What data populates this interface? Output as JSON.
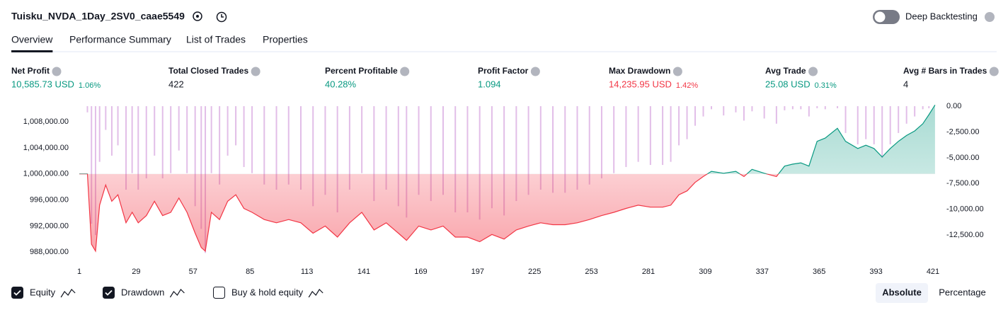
{
  "header": {
    "title": "Tuisku_NVDA_1Day_2SV0_caae5549",
    "toggle": {
      "label": "Deep Backtesting",
      "on": false
    }
  },
  "tabs": [
    {
      "label": "Overview",
      "active": true
    },
    {
      "label": "Performance Summary",
      "active": false
    },
    {
      "label": "List of Trades",
      "active": false
    },
    {
      "label": "Properties",
      "active": false
    }
  ],
  "metrics": [
    {
      "label": "Net Profit",
      "value": "10,585.73 USD",
      "percent": "1.06%",
      "tone": "pos"
    },
    {
      "label": "Total Closed Trades",
      "value": "422",
      "tone": "neutral"
    },
    {
      "label": "Percent Profitable",
      "value": "40.28%",
      "tone": "pos"
    },
    {
      "label": "Profit Factor",
      "value": "1.094",
      "tone": "pos"
    },
    {
      "label": "Max Drawdown",
      "value": "14,235.95 USD",
      "percent": "1.42%",
      "tone": "neg"
    },
    {
      "label": "Avg Trade",
      "value": "25.08 USD",
      "percent": "0.31%",
      "tone": "pos"
    },
    {
      "label": "Avg # Bars in Trades",
      "value": "4",
      "tone": "neutral"
    }
  ],
  "chart_data": {
    "type": "line",
    "x": [
      1,
      5,
      7,
      9,
      11,
      14,
      17,
      20,
      24,
      27,
      30,
      34,
      38,
      42,
      46,
      50,
      54,
      58,
      61,
      63,
      66,
      70,
      74,
      78,
      82,
      86,
      92,
      98,
      104,
      110,
      116,
      122,
      128,
      134,
      140,
      146,
      152,
      158,
      162,
      168,
      174,
      180,
      186,
      192,
      198,
      204,
      210,
      216,
      222,
      228,
      234,
      240,
      246,
      252,
      258,
      264,
      270,
      276,
      282,
      288,
      292,
      296,
      300,
      304,
      308,
      312,
      318,
      324,
      328,
      332,
      338,
      344,
      348,
      352,
      356,
      360,
      364,
      368,
      374,
      378,
      384,
      388,
      392,
      396,
      400,
      404,
      408,
      412,
      416,
      419,
      422
    ],
    "series": [
      {
        "name": "Equity",
        "color": "#f23645",
        "color_up": "#089981",
        "values": [
          1000000,
          1000000,
          989200,
          988150,
          995200,
          998300,
          995800,
          996800,
          992500,
          994100,
          992500,
          993600,
          995800,
          993600,
          994100,
          996300,
          994100,
          990900,
          988700,
          988150,
          994100,
          993000,
          995800,
          996800,
          994700,
          994100,
          993000,
          992500,
          993000,
          992500,
          990900,
          992000,
          990300,
          992500,
          994100,
          991400,
          992500,
          990900,
          989800,
          992000,
          991400,
          992000,
          990300,
          990300,
          989600,
          990700,
          990000,
          991400,
          992000,
          992500,
          992200,
          992200,
          992500,
          993000,
          993600,
          994100,
          994700,
          995200,
          994900,
          994900,
          995200,
          996800,
          997400,
          998700,
          999600,
          1000400,
          1000100,
          1000400,
          999600,
          1000700,
          1000100,
          999600,
          1001200,
          1001500,
          1001700,
          1001200,
          1005000,
          1005500,
          1007000,
          1005000,
          1003900,
          1004400,
          1003900,
          1002600,
          1003900,
          1005000,
          1005900,
          1006600,
          1007700,
          1009100,
          1010585.73
        ]
      },
      {
        "name": "Drawdown",
        "color": "#ce93d8",
        "axis": "y2",
        "values": [
          0,
          -600,
          -11400,
          -12500,
          -5400,
          -2300,
          -4800,
          -3800,
          -8100,
          -6500,
          -8100,
          -7000,
          -4800,
          -7000,
          -6500,
          -4300,
          -6500,
          -9700,
          -11900,
          -14236,
          -6500,
          -7600,
          -4800,
          -3800,
          -5900,
          -6500,
          -7600,
          -8100,
          -7600,
          -8100,
          -9700,
          -8600,
          -10300,
          -8100,
          -6500,
          -9200,
          -8100,
          -9700,
          -10800,
          -8600,
          -9200,
          -8600,
          -10300,
          -10300,
          -11000,
          -9900,
          -10600,
          -9200,
          -8600,
          -8100,
          -8400,
          -8400,
          -8100,
          -7600,
          -7000,
          -6500,
          -5900,
          -5400,
          -5700,
          -5700,
          -5400,
          -3800,
          -3200,
          -1900,
          -1000,
          -300,
          -900,
          -600,
          -1400,
          -500,
          -1200,
          -1700,
          -400,
          -300,
          -300,
          -1000,
          -200,
          -300,
          -200,
          -2600,
          -3700,
          -3200,
          -3700,
          -5000,
          -3700,
          -2600,
          -1700,
          -1000,
          -300,
          -200,
          0
        ]
      }
    ],
    "xlim": [
      1,
      421
    ],
    "xticks": [
      1,
      29,
      57,
      85,
      113,
      141,
      169,
      197,
      225,
      253,
      281,
      309,
      337,
      365,
      393,
      421
    ],
    "ylim": [
      986500,
      1010400
    ],
    "yticks": [
      {
        "value": 1008000,
        "label": "1,008,000.00"
      },
      {
        "value": 1004000,
        "label": "1,004,000.00"
      },
      {
        "value": 1000000,
        "label": "1,000,000.00"
      },
      {
        "value": 996000,
        "label": "996,000.00"
      },
      {
        "value": 992000,
        "label": "992,000.00"
      },
      {
        "value": 988000,
        "label": "988,000.00"
      }
    ],
    "y2lim": [
      -15100,
      0
    ],
    "y2ticks": [
      {
        "value": 0,
        "label": "0.00"
      },
      {
        "value": -2500,
        "label": "-2,500.00"
      },
      {
        "value": -5000,
        "label": "-5,000.00"
      },
      {
        "value": -7500,
        "label": "-7,500.00"
      },
      {
        "value": -10000,
        "label": "-10,000.00"
      },
      {
        "value": -12500,
        "label": "-12,500.00"
      }
    ]
  },
  "options": [
    {
      "label": "Equity",
      "checked": true
    },
    {
      "label": "Drawdown",
      "checked": true
    },
    {
      "label": "Buy & hold equity",
      "checked": false
    }
  ],
  "modes": [
    {
      "label": "Absolute",
      "active": true
    },
    {
      "label": "Percentage",
      "active": false
    }
  ]
}
